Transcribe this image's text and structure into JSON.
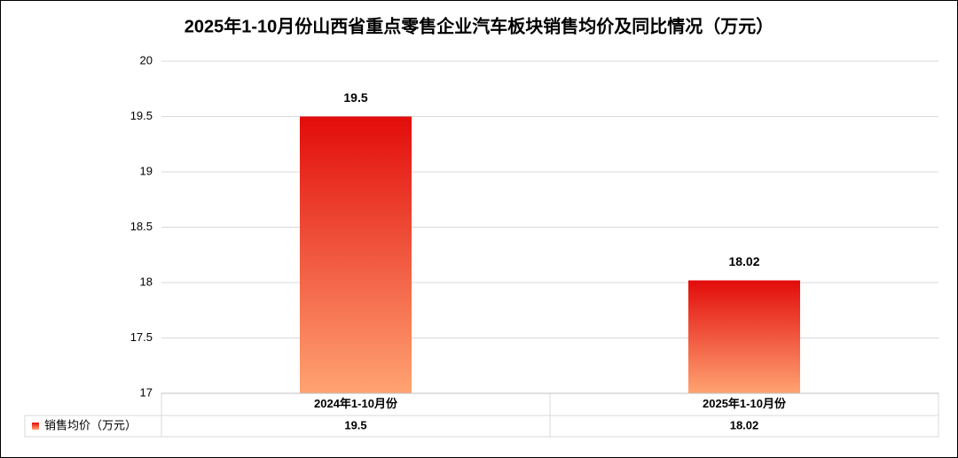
{
  "chart_data": {
    "type": "bar",
    "title": "2025年1-10月份山西省重点零售企业汽车板块销售均价及同比情况（万元）",
    "categories": [
      "2024年1-10月份",
      "2025年1-10月份"
    ],
    "series": [
      {
        "name": "销售均价（万元）",
        "color": [
          "#e20c0b",
          "#ffa372"
        ],
        "values": [
          19.5,
          18.02
        ]
      }
    ],
    "ylim": [
      17,
      20
    ],
    "yticks": [
      17,
      17.5,
      18,
      18.5,
      19,
      19.5,
      20
    ],
    "grid": true,
    "data_table": true
  }
}
